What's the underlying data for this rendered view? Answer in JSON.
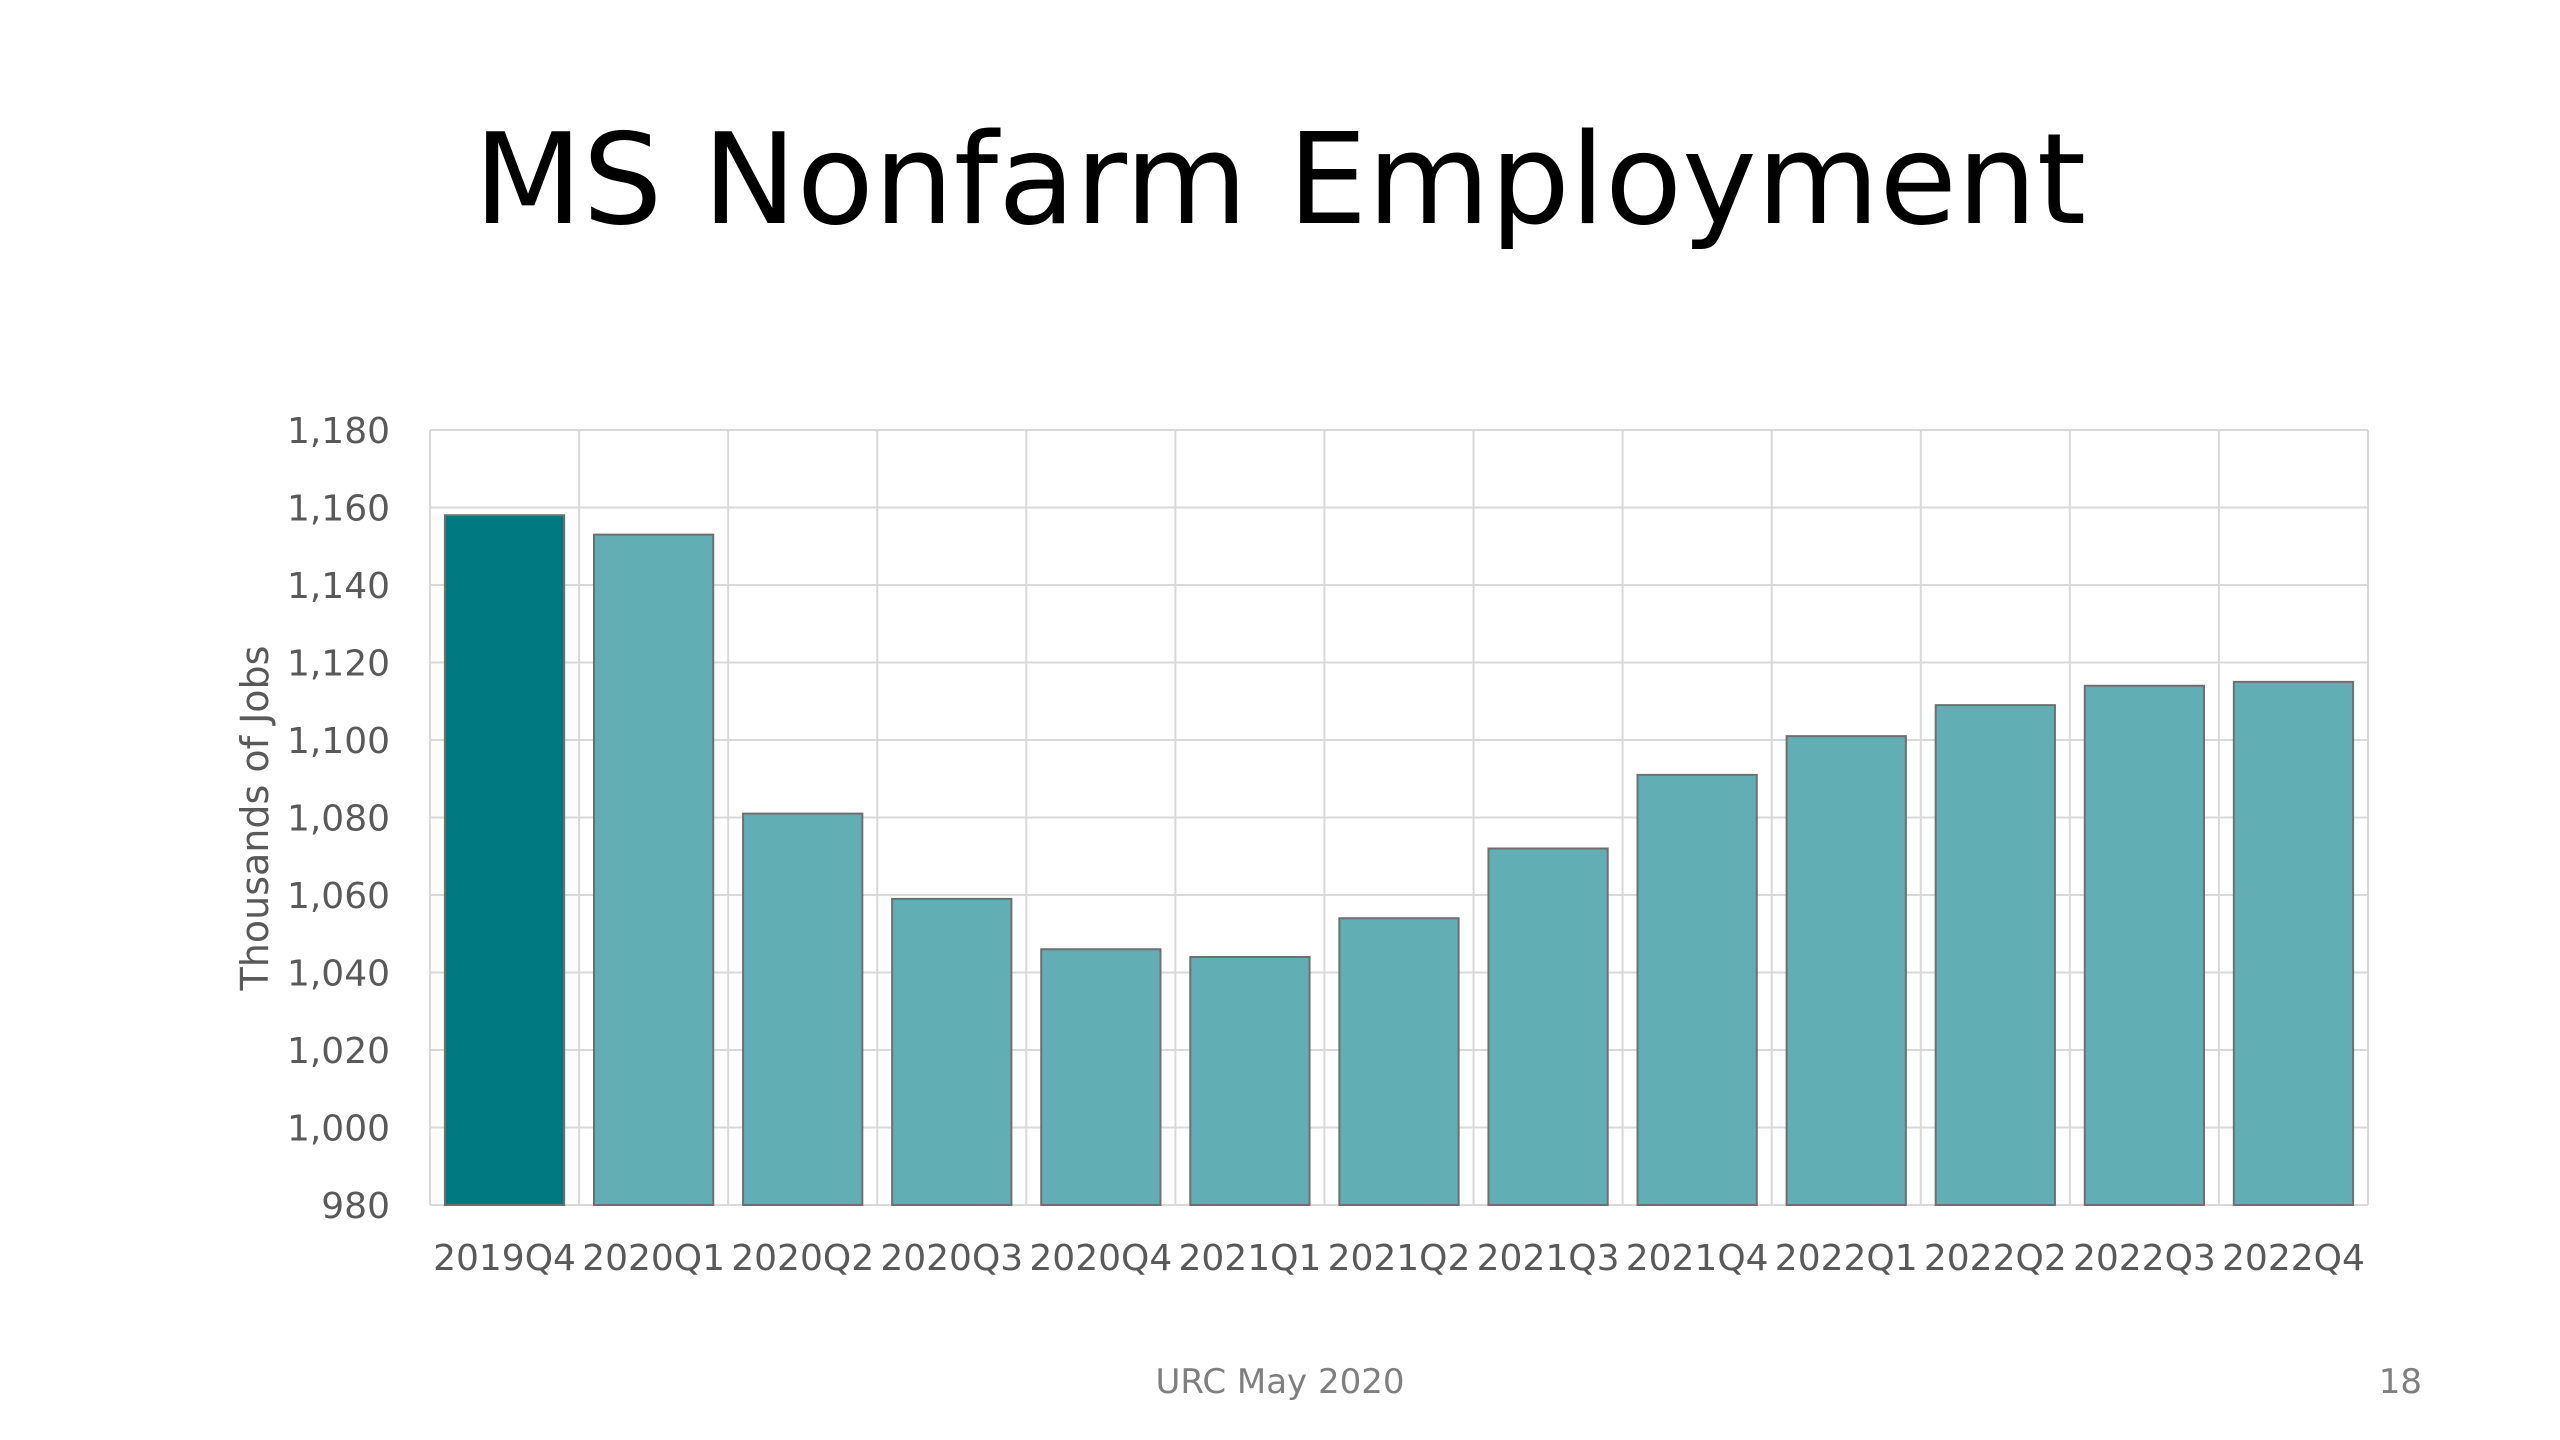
{
  "slide": {
    "title": "MS Nonfarm Employment",
    "footer": "URC May 2020",
    "page_number": "18"
  },
  "colors": {
    "highlight_bar": "#007A80",
    "bar": "#62AEB5",
    "bar_stroke": "#6f6f6f",
    "grid": "#d9d9d9",
    "axis_text": "#595959"
  },
  "chart_data": {
    "type": "bar",
    "title": "",
    "xlabel": "",
    "ylabel": "Thousands of Jobs",
    "ylim": [
      980,
      1180
    ],
    "y_ticks": [
      980,
      1000,
      1020,
      1040,
      1060,
      1080,
      1100,
      1120,
      1140,
      1160,
      1180
    ],
    "y_tick_labels": [
      "980",
      "1,000",
      "1,020",
      "1,040",
      "1,060",
      "1,080",
      "1,100",
      "1,120",
      "1,140",
      "1,160",
      "1,180"
    ],
    "categories": [
      "2019Q4",
      "2020Q1",
      "2020Q2",
      "2020Q3",
      "2020Q4",
      "2021Q1",
      "2021Q2",
      "2021Q3",
      "2021Q4",
      "2022Q1",
      "2022Q2",
      "2022Q3",
      "2022Q4"
    ],
    "values": [
      1158,
      1153,
      1081,
      1059,
      1046,
      1044,
      1054,
      1072,
      1091,
      1101,
      1109,
      1114,
      1115
    ],
    "highlight_index": 0,
    "grid": true,
    "legend": "none"
  }
}
